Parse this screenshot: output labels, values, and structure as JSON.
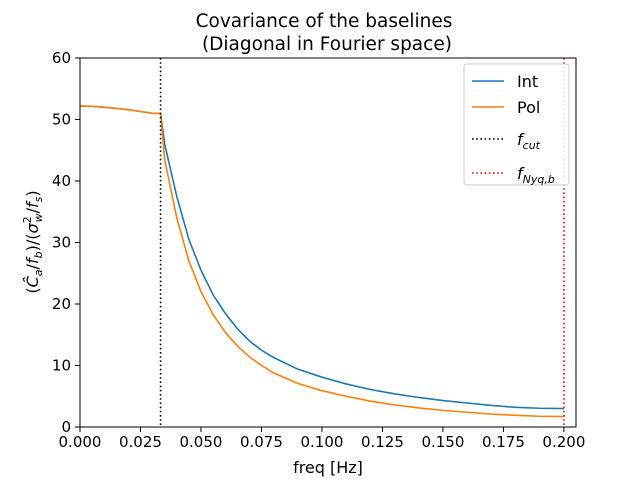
{
  "chart_data": {
    "type": "line",
    "title_line1": "Covariance of the baselines",
    "title_line2": " (Diagonal in Fourier space)",
    "xlabel": "freq [Hz]",
    "xlim": [
      0.0,
      0.205
    ],
    "ylim": [
      0,
      60
    ],
    "xticks": [
      0.0,
      0.025,
      0.05,
      0.075,
      0.1,
      0.125,
      0.15,
      0.175,
      0.2
    ],
    "xtick_labels": [
      "0.000",
      "0.025",
      "0.050",
      "0.075",
      "0.100",
      "0.125",
      "0.150",
      "0.175",
      "0.200"
    ],
    "yticks": [
      0,
      10,
      20,
      30,
      40,
      50,
      60
    ],
    "ytick_labels": [
      "0",
      "10",
      "20",
      "30",
      "40",
      "50",
      "60"
    ],
    "grid": false,
    "legend_position": "top-right",
    "series": [
      {
        "name": "Int",
        "color": "#1f77b4",
        "x": [
          0.0,
          0.005,
          0.01,
          0.015,
          0.02,
          0.025,
          0.03,
          0.0333,
          0.035,
          0.04,
          0.045,
          0.05,
          0.055,
          0.06,
          0.065,
          0.07,
          0.075,
          0.08,
          0.09,
          0.1,
          0.11,
          0.12,
          0.13,
          0.14,
          0.15,
          0.16,
          0.17,
          0.18,
          0.19,
          0.2
        ],
        "values": [
          52.2,
          52.15,
          52.0,
          51.8,
          51.6,
          51.3,
          51.0,
          51.0,
          46.0,
          37.5,
          30.5,
          25.5,
          21.5,
          18.5,
          16.0,
          14.0,
          12.5,
          11.3,
          9.4,
          8.1,
          7.0,
          6.1,
          5.4,
          4.8,
          4.3,
          3.9,
          3.5,
          3.2,
          3.05,
          3.0
        ]
      },
      {
        "name": "Pol",
        "color": "#ff7f0e",
        "x": [
          0.0,
          0.005,
          0.01,
          0.015,
          0.02,
          0.025,
          0.03,
          0.0333,
          0.035,
          0.04,
          0.045,
          0.05,
          0.055,
          0.06,
          0.065,
          0.07,
          0.075,
          0.08,
          0.09,
          0.1,
          0.11,
          0.12,
          0.13,
          0.14,
          0.15,
          0.16,
          0.17,
          0.18,
          0.19,
          0.2
        ],
        "values": [
          52.2,
          52.15,
          52.0,
          51.8,
          51.6,
          51.3,
          51.0,
          51.0,
          43.5,
          34.0,
          27.0,
          22.0,
          18.3,
          15.4,
          13.2,
          11.4,
          10.0,
          8.8,
          7.1,
          5.9,
          5.0,
          4.2,
          3.6,
          3.1,
          2.7,
          2.4,
          2.1,
          1.9,
          1.75,
          1.7
        ]
      }
    ],
    "vlines": [
      {
        "name": "f_cut",
        "x": 0.0333,
        "color": "#000000",
        "style": "dotted"
      },
      {
        "name": "f_Nyq,b",
        "x": 0.2,
        "color": "#ff0000",
        "style": "dotted"
      }
    ],
    "legend": [
      {
        "label": "Int",
        "color": "#1f77b4",
        "style": "solid"
      },
      {
        "label": "Pol",
        "color": "#ff7f0e",
        "style": "solid"
      },
      {
        "label": "f",
        "sub": "cut",
        "color": "#000000",
        "style": "dotted"
      },
      {
        "label": "f",
        "sub": "Nyq,b",
        "color": "#ff0000",
        "style": "dotted"
      }
    ]
  }
}
